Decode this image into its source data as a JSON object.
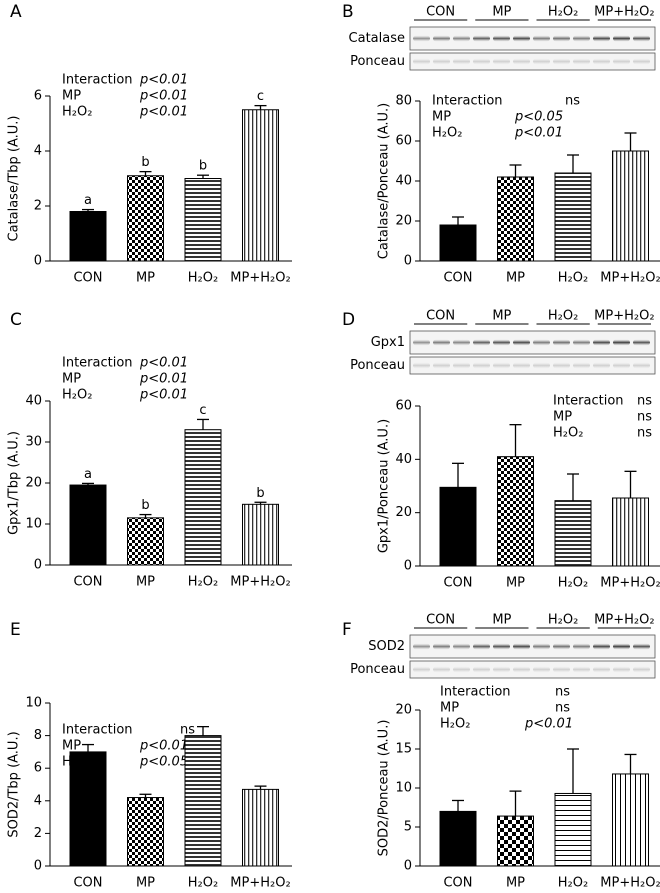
{
  "chart_data": [
    {
      "type": "bar",
      "label": "A",
      "ylabel": "Catalase/Tbp (A.U.)",
      "categories": [
        "CON",
        "MP",
        "H₂O₂",
        "MP+H₂O₂"
      ],
      "values": [
        1.8,
        3.1,
        3.0,
        5.5
      ],
      "errors": [
        0.07,
        0.15,
        0.12,
        0.15
      ],
      "value_labels": [
        "a",
        "b",
        "b",
        "c"
      ],
      "fills": [
        "black",
        "checker",
        "hstripe",
        "vstripe"
      ],
      "ylim": [
        0,
        6
      ],
      "yticks": [
        0,
        2,
        4,
        6
      ],
      "stats": [
        {
          "label": "Interaction",
          "value": "p<0.01"
        },
        {
          "label": "MP",
          "value": "p<0.01"
        },
        {
          "label": "H₂O₂",
          "value": "p<0.01"
        }
      ]
    },
    {
      "type": "bar",
      "label": "B",
      "ylabel": "Catalase/Ponceau (A.U.)",
      "categories": [
        "CON",
        "MP",
        "H₂O₂",
        "MP+H₂O₂"
      ],
      "values": [
        18,
        42,
        44,
        55
      ],
      "errors": [
        4,
        6,
        9,
        9
      ],
      "fills": [
        "black",
        "checker",
        "hstripe",
        "vstripe"
      ],
      "ylim": [
        0,
        80
      ],
      "yticks": [
        0,
        20,
        40,
        60,
        80
      ],
      "stats": [
        {
          "label": "Interaction",
          "value": "ns"
        },
        {
          "label": "MP",
          "value": "p<0.05"
        },
        {
          "label": "H₂O₂",
          "value": "p<0.01"
        }
      ],
      "blot": {
        "groups": [
          "CON",
          "MP",
          "H₂O₂",
          "MP+H₂O₂"
        ],
        "rows": [
          "Catalase",
          "Ponceau"
        ]
      }
    },
    {
      "type": "bar",
      "label": "C",
      "ylabel": "Gpx1/Tbp (A.U.)",
      "categories": [
        "CON",
        "MP",
        "H₂O₂",
        "MP+H₂O₂"
      ],
      "values": [
        19.5,
        11.5,
        33,
        14.8
      ],
      "errors": [
        0.4,
        0.8,
        2.5,
        0.5
      ],
      "value_labels": [
        "a",
        "b",
        "c",
        "b"
      ],
      "fills": [
        "black",
        "checker",
        "hstripe",
        "vstripe"
      ],
      "ylim": [
        0,
        40
      ],
      "yticks": [
        0,
        10,
        20,
        30,
        40
      ],
      "stats": [
        {
          "label": "Interaction",
          "value": "p<0.01"
        },
        {
          "label": "MP",
          "value": "p<0.01"
        },
        {
          "label": "H₂O₂",
          "value": "p<0.01"
        }
      ]
    },
    {
      "type": "bar",
      "label": "D",
      "ylabel": "Gpx1/Ponceau (A.U.)",
      "categories": [
        "CON",
        "MP",
        "H₂O₂",
        "MP+H₂O₂"
      ],
      "values": [
        29.5,
        41,
        24.5,
        25.5
      ],
      "errors": [
        9,
        12,
        10,
        10
      ],
      "fills": [
        "black",
        "checker",
        "hstripe",
        "vstripe"
      ],
      "ylim": [
        0,
        60
      ],
      "yticks": [
        0,
        20,
        40,
        60
      ],
      "stats": [
        {
          "label": "Interaction",
          "value": "ns"
        },
        {
          "label": "MP",
          "value": "ns"
        },
        {
          "label": "H₂O₂",
          "value": "ns"
        }
      ],
      "blot": {
        "groups": [
          "CON",
          "MP",
          "H₂O₂",
          "MP+H₂O₂"
        ],
        "rows": [
          "Gpx1",
          "Ponceau"
        ]
      }
    },
    {
      "type": "bar",
      "label": "E",
      "ylabel": "SOD2/Tbp (A.U.)",
      "categories": [
        "CON",
        "MP",
        "H₂O₂",
        "MP+H₂O₂"
      ],
      "values": [
        7.0,
        4.2,
        8.0,
        4.7
      ],
      "errors": [
        0.45,
        0.2,
        0.55,
        0.2
      ],
      "fills": [
        "black",
        "checker",
        "hstripe",
        "vstripe"
      ],
      "ylim": [
        0,
        10
      ],
      "yticks": [
        0,
        2,
        4,
        6,
        8,
        10
      ],
      "stats": [
        {
          "label": "Interaction",
          "value": "ns"
        },
        {
          "label": "MP",
          "value": "p<0.01"
        },
        {
          "label": "H₂O₂",
          "value": "p<0.05"
        }
      ]
    },
    {
      "type": "bar",
      "label": "F",
      "ylabel": "SOD2/Ponceau (A.U.)",
      "categories": [
        "CON",
        "MP",
        "H₂O₂",
        "MP+H₂O₂"
      ],
      "values": [
        7.0,
        6.4,
        9.3,
        11.8
      ],
      "errors": [
        1.4,
        3.2,
        5.7,
        2.5
      ],
      "fills": [
        "black",
        "checker2",
        "hline",
        "vline"
      ],
      "ylim": [
        0,
        20
      ],
      "yticks": [
        0,
        5,
        10,
        15,
        20
      ],
      "stats": [
        {
          "label": "Interaction",
          "value": "ns"
        },
        {
          "label": "MP",
          "value": "ns"
        },
        {
          "label": "H₂O₂",
          "value": "p<0.01"
        }
      ],
      "blot": {
        "groups": [
          "CON",
          "MP",
          "H₂O₂",
          "MP+H₂O₂"
        ],
        "rows": [
          "SOD2",
          "Ponceau"
        ]
      }
    }
  ]
}
